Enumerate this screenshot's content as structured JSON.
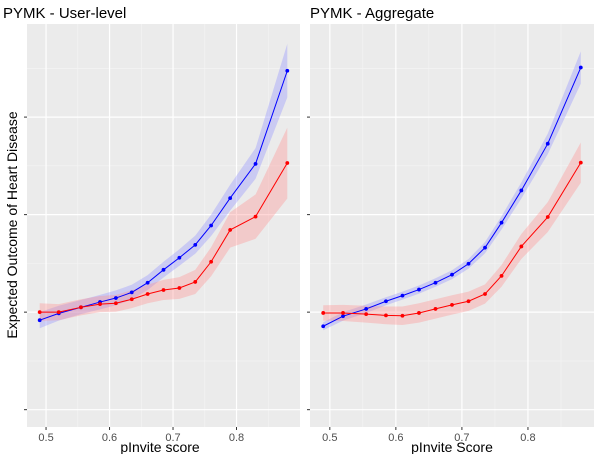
{
  "figure": {
    "ylabel": "Expected Outcome of Heart Disease"
  },
  "chart_data": [
    {
      "type": "line",
      "title": "PYMK - User-level",
      "xlabel": "pInvite score",
      "ylabel": "Expected Outcome of Heart Disease",
      "xlim": [
        0.47,
        0.9
      ],
      "ylim": [
        0,
        1
      ],
      "x_ticks": [
        0.5,
        0.6,
        0.7,
        0.8
      ],
      "x_tick_labels": [
        "0.5",
        "0.6",
        "0.7",
        "0.8"
      ],
      "y_ticks": [
        0.043,
        0.285,
        0.527,
        0.769,
        1.011
      ],
      "y_tick_labels": [
        "",
        "",
        "",
        "",
        ""
      ],
      "grid": true,
      "legend": "none",
      "series": [
        {
          "color": "#0000ff",
          "band_color": "#8c8cff",
          "x": [
            0.49,
            0.52,
            0.555,
            0.585,
            0.61,
            0.635,
            0.66,
            0.685,
            0.71,
            0.735,
            0.76,
            0.79,
            0.83,
            0.88
          ],
          "values": [
            0.265,
            0.282,
            0.297,
            0.31,
            0.32,
            0.334,
            0.358,
            0.39,
            0.42,
            0.452,
            0.5,
            0.568,
            0.653,
            0.884
          ],
          "lower": [
            0.245,
            0.264,
            0.28,
            0.292,
            0.302,
            0.316,
            0.34,
            0.371,
            0.4,
            0.43,
            0.474,
            0.537,
            0.616,
            0.818
          ],
          "upper": [
            0.285,
            0.301,
            0.315,
            0.328,
            0.339,
            0.353,
            0.377,
            0.41,
            0.441,
            0.475,
            0.527,
            0.601,
            0.692,
            0.951
          ]
        },
        {
          "color": "#ff0000",
          "band_color": "#ff8c8c",
          "x": [
            0.49,
            0.52,
            0.555,
            0.585,
            0.61,
            0.635,
            0.66,
            0.685,
            0.71,
            0.735,
            0.76,
            0.79,
            0.83,
            0.88
          ],
          "values": [
            0.285,
            0.285,
            0.297,
            0.305,
            0.307,
            0.317,
            0.33,
            0.34,
            0.345,
            0.36,
            0.41,
            0.489,
            0.522,
            0.655
          ],
          "lower": [
            0.263,
            0.265,
            0.277,
            0.285,
            0.286,
            0.295,
            0.307,
            0.315,
            0.318,
            0.33,
            0.374,
            0.445,
            0.467,
            0.567
          ],
          "upper": [
            0.307,
            0.305,
            0.317,
            0.325,
            0.328,
            0.339,
            0.353,
            0.365,
            0.372,
            0.39,
            0.446,
            0.533,
            0.577,
            0.743
          ]
        }
      ]
    },
    {
      "type": "line",
      "title": "PYMK - Aggregate",
      "xlabel": "pInvite Score",
      "ylabel": "",
      "xlim": [
        0.47,
        0.9
      ],
      "ylim": [
        0,
        1
      ],
      "x_ticks": [
        0.5,
        0.6,
        0.7,
        0.8
      ],
      "x_tick_labels": [
        "0.5",
        "0.6",
        "0.7",
        "0.8"
      ],
      "y_ticks": [
        0.043,
        0.285,
        0.527,
        0.769,
        1.011
      ],
      "y_tick_labels": [
        "",
        "",
        "",
        "",
        ""
      ],
      "grid": true,
      "legend": "none",
      "series": [
        {
          "color": "#0000ff",
          "band_color": "#8c8cff",
          "x": [
            0.49,
            0.52,
            0.555,
            0.585,
            0.61,
            0.635,
            0.66,
            0.685,
            0.71,
            0.735,
            0.76,
            0.79,
            0.83,
            0.88
          ],
          "values": [
            0.25,
            0.275,
            0.293,
            0.312,
            0.326,
            0.341,
            0.358,
            0.378,
            0.405,
            0.445,
            0.507,
            0.587,
            0.703,
            0.892
          ],
          "lower": [
            0.24,
            0.264,
            0.283,
            0.302,
            0.316,
            0.331,
            0.348,
            0.367,
            0.393,
            0.431,
            0.49,
            0.567,
            0.677,
            0.852
          ],
          "upper": [
            0.26,
            0.285,
            0.304,
            0.322,
            0.336,
            0.351,
            0.369,
            0.389,
            0.417,
            0.459,
            0.523,
            0.607,
            0.728,
            0.932
          ]
        },
        {
          "color": "#ff0000",
          "band_color": "#ff8c8c",
          "x": [
            0.49,
            0.52,
            0.555,
            0.585,
            0.61,
            0.635,
            0.66,
            0.685,
            0.71,
            0.735,
            0.76,
            0.79,
            0.83,
            0.88
          ],
          "values": [
            0.283,
            0.283,
            0.28,
            0.277,
            0.276,
            0.283,
            0.293,
            0.303,
            0.312,
            0.33,
            0.375,
            0.448,
            0.521,
            0.656
          ],
          "lower": [
            0.264,
            0.263,
            0.259,
            0.255,
            0.253,
            0.259,
            0.269,
            0.279,
            0.288,
            0.306,
            0.348,
            0.417,
            0.484,
            0.606
          ],
          "upper": [
            0.302,
            0.303,
            0.301,
            0.299,
            0.299,
            0.307,
            0.317,
            0.327,
            0.336,
            0.354,
            0.402,
            0.479,
            0.558,
            0.706
          ]
        }
      ]
    }
  ]
}
